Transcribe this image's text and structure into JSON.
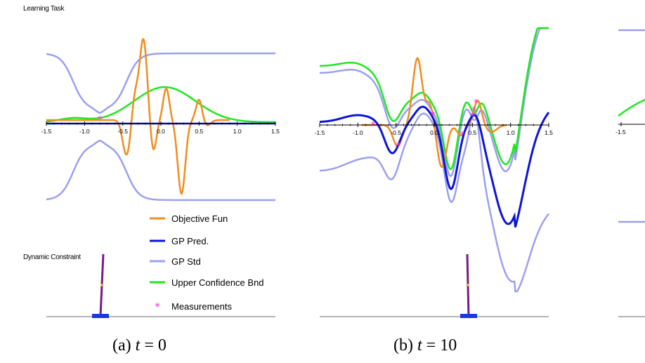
{
  "labels": {
    "learning_task": "Learning Task",
    "dynamic_constraint": "Dynamic Constraint"
  },
  "legend": [
    {
      "label": "Objective Fun",
      "color": "#f28c1e",
      "marker": "line"
    },
    {
      "label": "GP Pred.",
      "color": "#0a14d8",
      "marker": "line"
    },
    {
      "label": "GP Std",
      "color": "#9aa0f0",
      "marker": "line"
    },
    {
      "label": "Upper Confidence Bnd",
      "color": "#1ee81e",
      "marker": "line"
    },
    {
      "label": "Measurements",
      "color": "#ff2de0",
      "marker": "asterisk"
    }
  ],
  "chart_data": [
    {
      "type": "line",
      "caption": "(a) t = 0",
      "caption_prefix": "(a)",
      "caption_var": "t",
      "caption_eq": "= 0",
      "xlim": [
        -1.5,
        1.5
      ],
      "x_ticks": [
        "-1.5",
        "-1.0",
        "-0.5",
        "0.0",
        "0.5",
        "1.0",
        "1.5"
      ],
      "grid": false,
      "measurements_x": [
        -0.8
      ]
    },
    {
      "type": "line",
      "caption": "(b) t = 10",
      "caption_prefix": "(b)",
      "caption_var": "t",
      "caption_eq": "= 10",
      "xlim": [
        -1.5,
        1.5
      ],
      "x_ticks": [
        "-1.5",
        "-1.0",
        "-0.5",
        "0.0",
        "0.5",
        "1.0",
        "1.5"
      ],
      "grid": false,
      "measurements_x": [
        -0.8,
        -0.47,
        -0.02,
        0.37,
        0.5,
        0.52,
        0.55
      ]
    },
    {
      "type": "line",
      "xlim": [
        -1.5,
        1.5
      ],
      "x_ticks": [
        "-1.5"
      ]
    }
  ],
  "colors": {
    "objective": "#f28c1e",
    "gp_pred": "#0a14d8",
    "gp_std": "#9aa0f0",
    "ucb": "#1ee81e",
    "measurement": "#ff2de0",
    "pendulum": "#7a1a8a",
    "cart": "#1a3ad8",
    "ground": "#9a9a9a"
  }
}
